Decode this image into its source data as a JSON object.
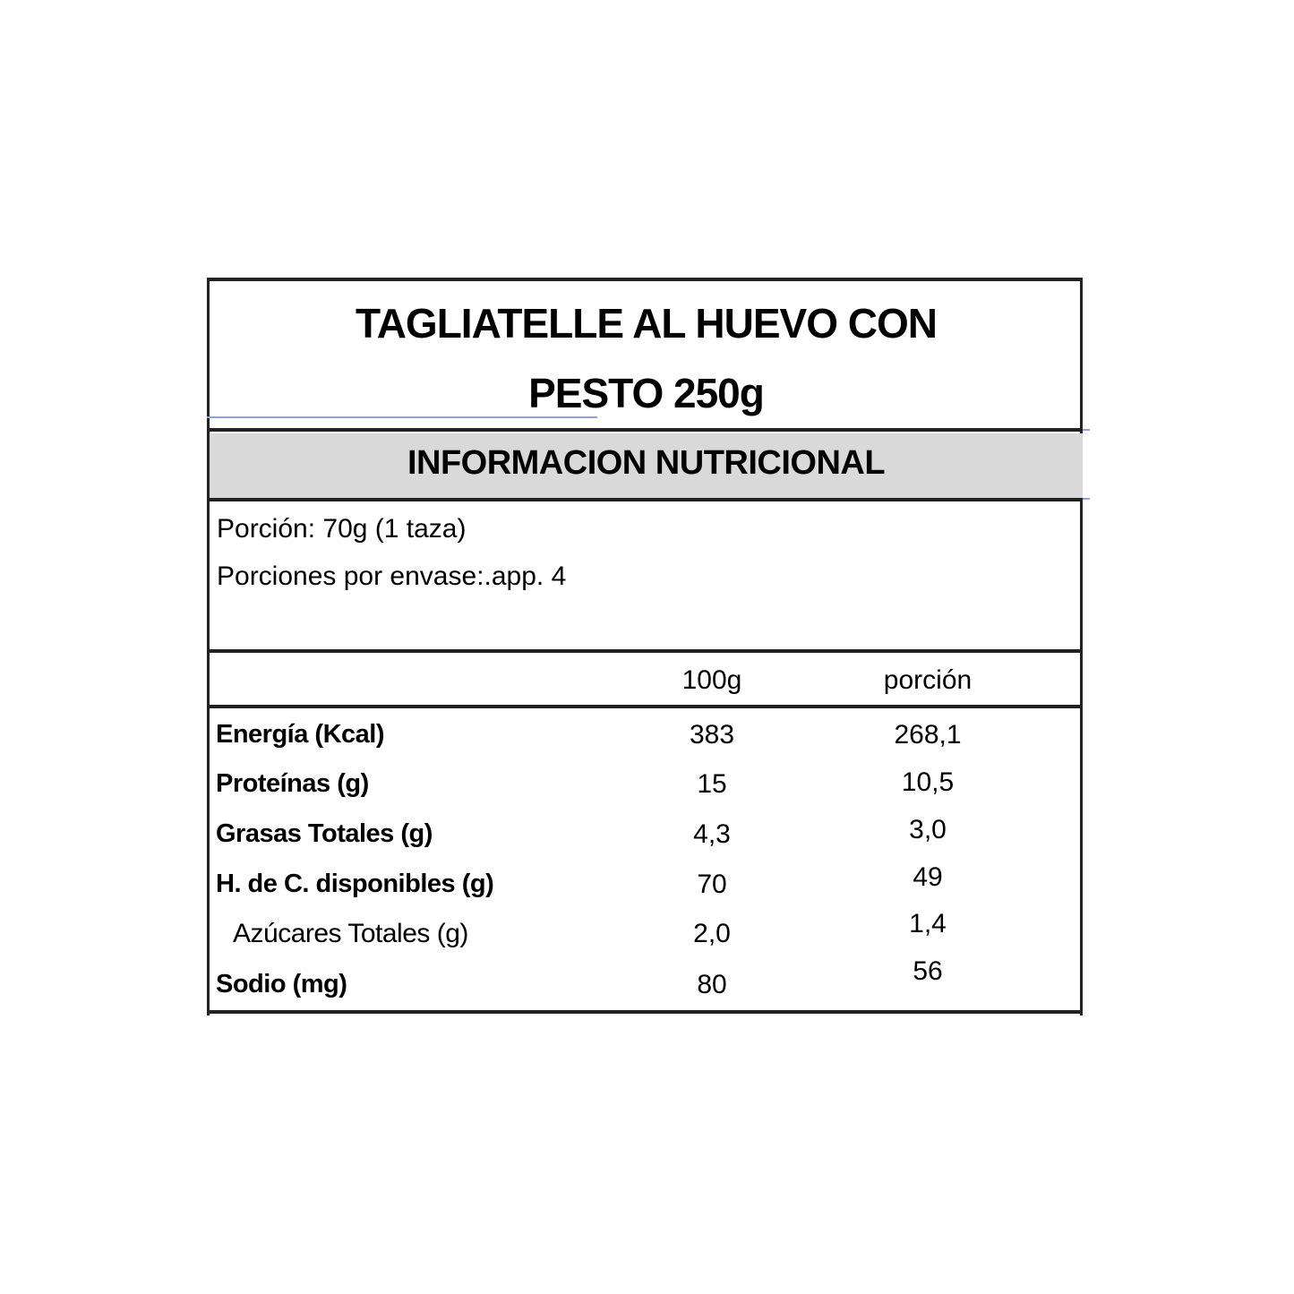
{
  "title": {
    "line1": "TAGLIATELLE AL HUEVO CON",
    "line2": "PESTO 250g"
  },
  "section_header": "INFORMACION NUTRICIONAL",
  "serving": {
    "portion": "Porción: 70g (1 taza)",
    "servings_per_pack": "Porciones por envase:.app. 4"
  },
  "table": {
    "columns": [
      "100g",
      "porción"
    ],
    "rows": [
      {
        "label": "Energía (Kcal)",
        "per100g": "383",
        "portion": "268,1"
      },
      {
        "label": "Proteínas (g)",
        "per100g": "15",
        "portion": "10,5"
      },
      {
        "label": "Grasas Totales (g)",
        "per100g": "4,3",
        "portion": "3,0"
      },
      {
        "label": "H. de C. disponibles (g)",
        "per100g": "70",
        "portion": "49"
      },
      {
        "label": "Azúcares Totales (g)",
        "per100g": "2,0",
        "portion": "1,4"
      },
      {
        "label": "Sodio (mg)",
        "per100g": "80",
        "portion": "56"
      }
    ]
  },
  "colors": {
    "header_band": "#d9d9d9",
    "border": "#222222",
    "guide_line": "#8ea2e3"
  }
}
